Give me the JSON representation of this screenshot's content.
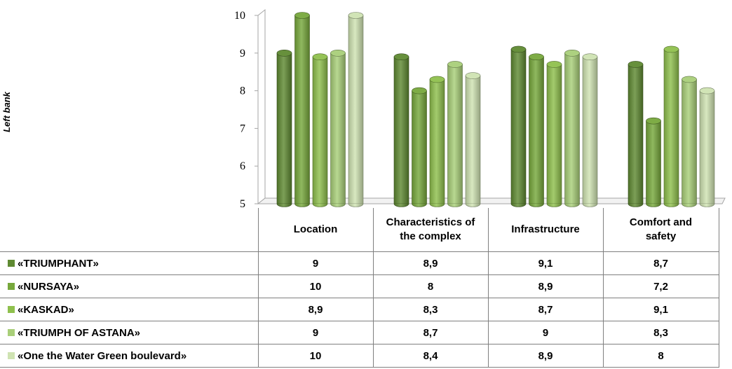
{
  "chart_data": {
    "type": "bar",
    "variant": "3d-clustered-column",
    "ylabel": "Left bank",
    "ylim": [
      5,
      10
    ],
    "yticks": [
      "5",
      "6",
      "7",
      "8",
      "9",
      "10"
    ],
    "grid": false,
    "legend": "table-left",
    "categories": [
      "Location",
      "Characteristics of the complex",
      "Infrastructure",
      "Comfort and safety"
    ],
    "series": [
      {
        "name": "«TRIUMPHANT»",
        "values": [
          9,
          8.9,
          9.1,
          8.7
        ],
        "labels": [
          "9",
          "8,9",
          "9,1",
          "8,7"
        ],
        "color": "#5f8a32"
      },
      {
        "name": "«NURSAYA»",
        "values": [
          10,
          8,
          8.9,
          7.2
        ],
        "labels": [
          "10",
          "8",
          "8,9",
          "7,2"
        ],
        "color": "#77a83c"
      },
      {
        "name": "«KASKAD»",
        "values": [
          8.9,
          8.3,
          8.7,
          9.1
        ],
        "labels": [
          "8,9",
          "8,3",
          "8,7",
          "9,1"
        ],
        "color": "#8fc04d"
      },
      {
        "name": "«TRIUMPH OF ASTANA»",
        "values": [
          9,
          8.7,
          9,
          8.3
        ],
        "labels": [
          "9",
          "8,7",
          "9",
          "8,3"
        ],
        "color": "#a9cf79"
      },
      {
        "name": "«One the Water Green boulevard»",
        "values": [
          10,
          8.4,
          8.9,
          8
        ],
        "labels": [
          "10",
          "8,4",
          "8,9",
          "8"
        ],
        "color": "#cfe3b2"
      }
    ]
  }
}
